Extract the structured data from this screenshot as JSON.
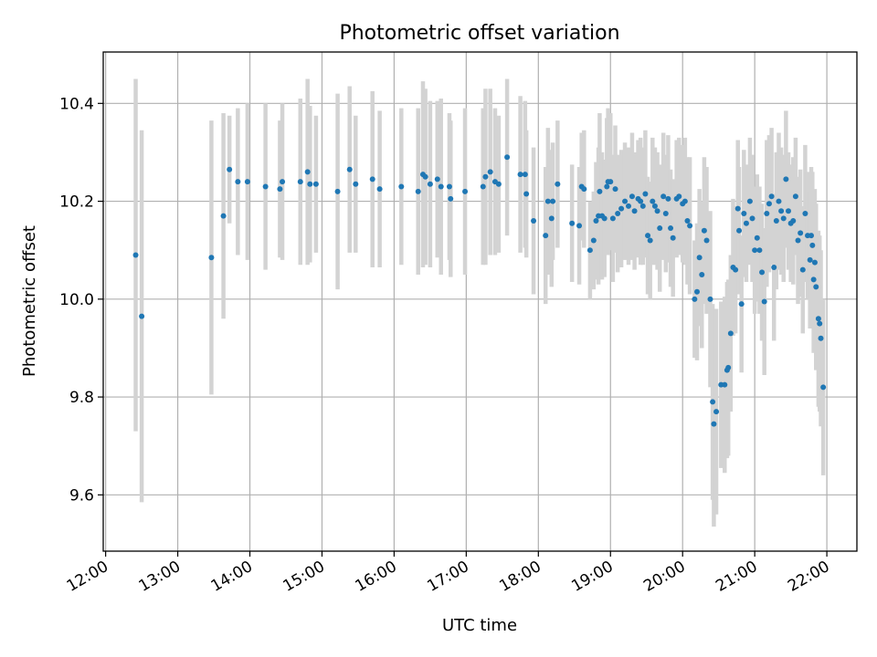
{
  "chart_data": {
    "type": "scatter",
    "title": "Photometric offset variation",
    "xlabel": "UTC time",
    "ylabel": "Photometric offset",
    "xlim": [
      "11:58",
      "22:25"
    ],
    "ylim": [
      9.485,
      10.505
    ],
    "x_ticks": [
      "12:00",
      "13:00",
      "14:00",
      "15:00",
      "16:00",
      "17:00",
      "18:00",
      "19:00",
      "20:00",
      "21:00",
      "22:00"
    ],
    "y_ticks": [
      9.6,
      9.8,
      10.0,
      10.2,
      10.4
    ],
    "grid": true,
    "colors": {
      "point": "#1f77b4",
      "errorbar": "#d3d3d3",
      "grid": "#b0b0b0"
    },
    "series": [
      {
        "values": [
          {
            "t": "12:25",
            "y": 10.09,
            "err": 0.36
          },
          {
            "t": "12:30",
            "y": 9.965,
            "err": 0.38
          },
          {
            "t": "13:28",
            "y": 10.085,
            "err": 0.28
          },
          {
            "t": "13:38",
            "y": 10.17,
            "err": 0.21
          },
          {
            "t": "13:43",
            "y": 10.265,
            "err": 0.11
          },
          {
            "t": "13:50",
            "y": 10.24,
            "err": 0.15
          },
          {
            "t": "13:58",
            "y": 10.24,
            "err": 0.16
          },
          {
            "t": "14:13",
            "y": 10.23,
            "err": 0.17
          },
          {
            "t": "14:25",
            "y": 10.225,
            "err": 0.14
          },
          {
            "t": "14:27",
            "y": 10.24,
            "err": 0.16
          },
          {
            "t": "14:42",
            "y": 10.24,
            "err": 0.17
          },
          {
            "t": "14:48",
            "y": 10.26,
            "err": 0.19
          },
          {
            "t": "14:50",
            "y": 10.235,
            "err": 0.16
          },
          {
            "t": "14:55",
            "y": 10.235,
            "err": 0.14
          },
          {
            "t": "15:13",
            "y": 10.22,
            "err": 0.2
          },
          {
            "t": "15:23",
            "y": 10.265,
            "err": 0.17
          },
          {
            "t": "15:28",
            "y": 10.235,
            "err": 0.14
          },
          {
            "t": "15:42",
            "y": 10.245,
            "err": 0.18
          },
          {
            "t": "15:48",
            "y": 10.225,
            "err": 0.16
          },
          {
            "t": "16:06",
            "y": 10.23,
            "err": 0.16
          },
          {
            "t": "16:20",
            "y": 10.22,
            "err": 0.17
          },
          {
            "t": "16:24",
            "y": 10.255,
            "err": 0.19
          },
          {
            "t": "16:26",
            "y": 10.25,
            "err": 0.18
          },
          {
            "t": "16:30",
            "y": 10.235,
            "err": 0.17
          },
          {
            "t": "16:36",
            "y": 10.245,
            "err": 0.16
          },
          {
            "t": "16:39",
            "y": 10.23,
            "err": 0.18
          },
          {
            "t": "16:46",
            "y": 10.23,
            "err": 0.15
          },
          {
            "t": "16:47",
            "y": 10.205,
            "err": 0.16
          },
          {
            "t": "16:59",
            "y": 10.22,
            "err": 0.17
          },
          {
            "t": "17:14",
            "y": 10.23,
            "err": 0.16
          },
          {
            "t": "17:16",
            "y": 10.25,
            "err": 0.18
          },
          {
            "t": "17:20",
            "y": 10.26,
            "err": 0.17
          },
          {
            "t": "17:24",
            "y": 10.24,
            "err": 0.15
          },
          {
            "t": "17:27",
            "y": 10.235,
            "err": 0.14
          },
          {
            "t": "17:34",
            "y": 10.29,
            "err": 0.16
          },
          {
            "t": "17:45",
            "y": 10.255,
            "err": 0.16
          },
          {
            "t": "17:49",
            "y": 10.255,
            "err": 0.15
          },
          {
            "t": "17:50",
            "y": 10.215,
            "err": 0.13
          },
          {
            "t": "17:56",
            "y": 10.16,
            "err": 0.15
          },
          {
            "t": "18:06",
            "y": 10.13,
            "err": 0.14
          },
          {
            "t": "18:08",
            "y": 10.2,
            "err": 0.15
          },
          {
            "t": "18:11",
            "y": 10.165,
            "err": 0.14
          },
          {
            "t": "18:12",
            "y": 10.2,
            "err": 0.12
          },
          {
            "t": "18:16",
            "y": 10.235,
            "err": 0.13
          },
          {
            "t": "18:28",
            "y": 10.155,
            "err": 0.12
          },
          {
            "t": "18:34",
            "y": 10.15,
            "err": 0.12
          },
          {
            "t": "18:36",
            "y": 10.23,
            "err": 0.11
          },
          {
            "t": "18:38",
            "y": 10.225,
            "err": 0.12
          },
          {
            "t": "18:43",
            "y": 10.1,
            "err": 0.1
          },
          {
            "t": "18:46",
            "y": 10.12,
            "err": 0.1
          },
          {
            "t": "18:48",
            "y": 10.16,
            "err": 0.12
          },
          {
            "t": "18:50",
            "y": 10.17,
            "err": 0.14
          },
          {
            "t": "18:51",
            "y": 10.22,
            "err": 0.16
          },
          {
            "t": "18:53",
            "y": 10.17,
            "err": 0.13
          },
          {
            "t": "18:55",
            "y": 10.165,
            "err": 0.12
          },
          {
            "t": "18:57",
            "y": 10.23,
            "err": 0.14
          },
          {
            "t": "18:58",
            "y": 10.24,
            "err": 0.15
          },
          {
            "t": "19:00",
            "y": 10.24,
            "err": 0.14
          },
          {
            "t": "19:02",
            "y": 10.165,
            "err": 0.13
          },
          {
            "t": "19:04",
            "y": 10.225,
            "err": 0.13
          },
          {
            "t": "19:06",
            "y": 10.175,
            "err": 0.12
          },
          {
            "t": "19:09",
            "y": 10.185,
            "err": 0.12
          },
          {
            "t": "19:12",
            "y": 10.2,
            "err": 0.12
          },
          {
            "t": "19:15",
            "y": 10.19,
            "err": 0.12
          },
          {
            "t": "19:18",
            "y": 10.21,
            "err": 0.13
          },
          {
            "t": "19:20",
            "y": 10.18,
            "err": 0.12
          },
          {
            "t": "19:23",
            "y": 10.205,
            "err": 0.12
          },
          {
            "t": "19:25",
            "y": 10.2,
            "err": 0.13
          },
          {
            "t": "19:27",
            "y": 10.19,
            "err": 0.12
          },
          {
            "t": "19:29",
            "y": 10.215,
            "err": 0.13
          },
          {
            "t": "19:31",
            "y": 10.13,
            "err": 0.12
          },
          {
            "t": "19:33",
            "y": 10.12,
            "err": 0.12
          },
          {
            "t": "19:35",
            "y": 10.2,
            "err": 0.13
          },
          {
            "t": "19:37",
            "y": 10.19,
            "err": 0.12
          },
          {
            "t": "19:39",
            "y": 10.18,
            "err": 0.12
          },
          {
            "t": "19:41",
            "y": 10.145,
            "err": 0.13
          },
          {
            "t": "19:44",
            "y": 10.21,
            "err": 0.13
          },
          {
            "t": "19:46",
            "y": 10.175,
            "err": 0.12
          },
          {
            "t": "19:48",
            "y": 10.205,
            "err": 0.13
          },
          {
            "t": "19:50",
            "y": 10.145,
            "err": 0.12
          },
          {
            "t": "19:52",
            "y": 10.125,
            "err": 0.12
          },
          {
            "t": "19:55",
            "y": 10.205,
            "err": 0.12
          },
          {
            "t": "19:57",
            "y": 10.21,
            "err": 0.12
          },
          {
            "t": "20:00",
            "y": 10.195,
            "err": 0.12
          },
          {
            "t": "20:02",
            "y": 10.2,
            "err": 0.13
          },
          {
            "t": "20:04",
            "y": 10.16,
            "err": 0.13
          },
          {
            "t": "20:06",
            "y": 10.15,
            "err": 0.14
          },
          {
            "t": "20:10",
            "y": 10.0,
            "err": 0.12
          },
          {
            "t": "20:12",
            "y": 10.015,
            "err": 0.14
          },
          {
            "t": "20:14",
            "y": 10.085,
            "err": 0.14
          },
          {
            "t": "20:16",
            "y": 10.05,
            "err": 0.15
          },
          {
            "t": "20:18",
            "y": 10.14,
            "err": 0.15
          },
          {
            "t": "20:20",
            "y": 10.12,
            "err": 0.15
          },
          {
            "t": "20:23",
            "y": 10.0,
            "err": 0.18
          },
          {
            "t": "20:25",
            "y": 9.79,
            "err": 0.2
          },
          {
            "t": "20:26",
            "y": 9.745,
            "err": 0.21
          },
          {
            "t": "20:28",
            "y": 9.77,
            "err": 0.21
          },
          {
            "t": "20:32",
            "y": 9.825,
            "err": 0.17
          },
          {
            "t": "20:35",
            "y": 9.825,
            "err": 0.18
          },
          {
            "t": "20:37",
            "y": 9.855,
            "err": 0.18
          },
          {
            "t": "20:38",
            "y": 9.86,
            "err": 0.18
          },
          {
            "t": "20:40",
            "y": 9.93,
            "err": 0.16
          },
          {
            "t": "20:42",
            "y": 10.065,
            "err": 0.14
          },
          {
            "t": "20:44",
            "y": 10.06,
            "err": 0.13
          },
          {
            "t": "20:46",
            "y": 10.185,
            "err": 0.14
          },
          {
            "t": "20:47",
            "y": 10.14,
            "err": 0.13
          },
          {
            "t": "20:49",
            "y": 9.99,
            "err": 0.14
          },
          {
            "t": "20:51",
            "y": 10.175,
            "err": 0.13
          },
          {
            "t": "20:53",
            "y": 10.155,
            "err": 0.12
          },
          {
            "t": "20:56",
            "y": 10.2,
            "err": 0.13
          },
          {
            "t": "20:58",
            "y": 10.165,
            "err": 0.13
          },
          {
            "t": "21:00",
            "y": 10.1,
            "err": 0.13
          },
          {
            "t": "21:02",
            "y": 10.125,
            "err": 0.13
          },
          {
            "t": "21:04",
            "y": 10.1,
            "err": 0.13
          },
          {
            "t": "21:06",
            "y": 10.055,
            "err": 0.14
          },
          {
            "t": "21:08",
            "y": 9.995,
            "err": 0.15
          },
          {
            "t": "21:10",
            "y": 10.175,
            "err": 0.15
          },
          {
            "t": "21:12",
            "y": 10.195,
            "err": 0.14
          },
          {
            "t": "21:14",
            "y": 10.21,
            "err": 0.14
          },
          {
            "t": "21:16",
            "y": 10.065,
            "err": 0.15
          },
          {
            "t": "21:18",
            "y": 10.16,
            "err": 0.14
          },
          {
            "t": "21:20",
            "y": 10.2,
            "err": 0.14
          },
          {
            "t": "21:22",
            "y": 10.18,
            "err": 0.13
          },
          {
            "t": "21:24",
            "y": 10.165,
            "err": 0.13
          },
          {
            "t": "21:26",
            "y": 10.245,
            "err": 0.14
          },
          {
            "t": "21:28",
            "y": 10.18,
            "err": 0.12
          },
          {
            "t": "21:30",
            "y": 10.155,
            "err": 0.12
          },
          {
            "t": "21:32",
            "y": 10.16,
            "err": 0.13
          },
          {
            "t": "21:34",
            "y": 10.21,
            "err": 0.12
          },
          {
            "t": "21:36",
            "y": 10.12,
            "err": 0.13
          },
          {
            "t": "21:38",
            "y": 10.135,
            "err": 0.13
          },
          {
            "t": "21:40",
            "y": 10.06,
            "err": 0.13
          },
          {
            "t": "21:42",
            "y": 10.175,
            "err": 0.14
          },
          {
            "t": "21:44",
            "y": 10.13,
            "err": 0.13
          },
          {
            "t": "21:46",
            "y": 10.08,
            "err": 0.14
          },
          {
            "t": "21:47",
            "y": 10.13,
            "err": 0.14
          },
          {
            "t": "21:48",
            "y": 10.11,
            "err": 0.15
          },
          {
            "t": "21:49",
            "y": 10.04,
            "err": 0.15
          },
          {
            "t": "21:50",
            "y": 10.075,
            "err": 0.15
          },
          {
            "t": "21:51",
            "y": 10.025,
            "err": 0.17
          },
          {
            "t": "21:53",
            "y": 9.96,
            "err": 0.18
          },
          {
            "t": "21:54",
            "y": 9.95,
            "err": 0.18
          },
          {
            "t": "21:55",
            "y": 9.92,
            "err": 0.18
          },
          {
            "t": "21:57",
            "y": 9.82,
            "err": 0.18
          }
        ]
      }
    ]
  }
}
